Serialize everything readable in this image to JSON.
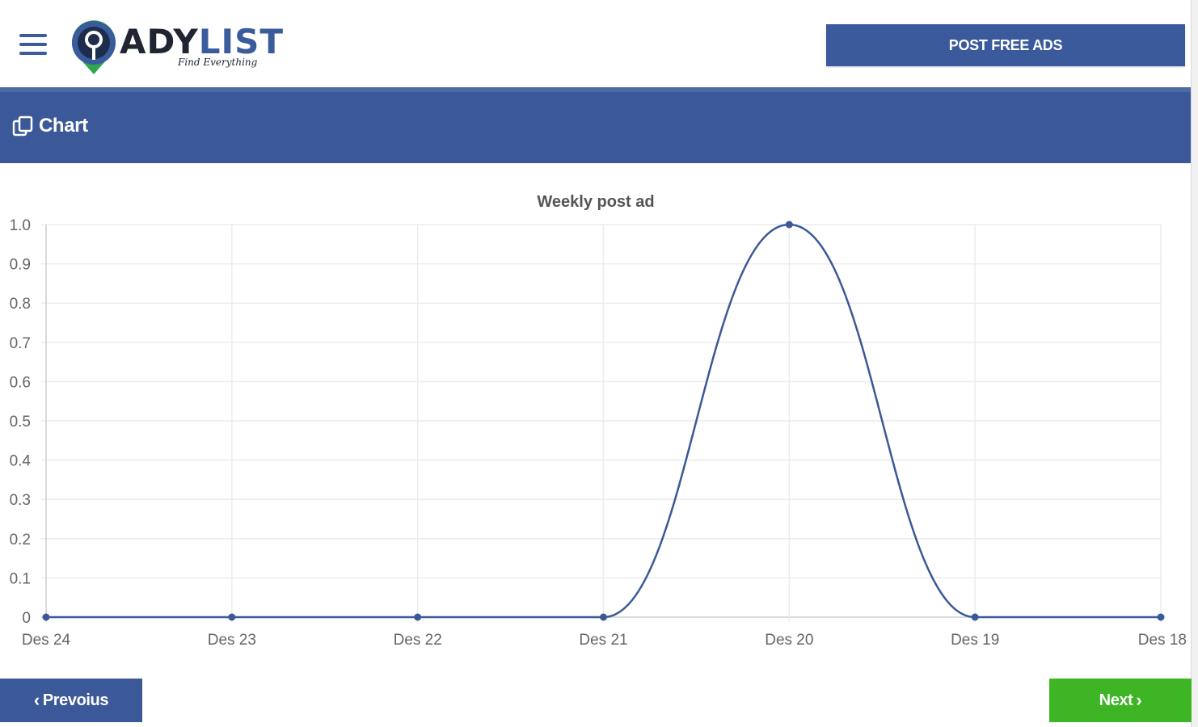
{
  "header": {
    "brand": {
      "name_dark": "ADY",
      "name_blue": "LIST",
      "tagline": "Find Everything"
    },
    "menu_icon": "hamburger-icon",
    "post_button_label": "POST FREE ADS"
  },
  "section": {
    "title": "Chart",
    "icon": "chart-copy-icon"
  },
  "chart_data": {
    "type": "line",
    "title": "Weekly post ad",
    "categories": [
      "Des 24",
      "Des 23",
      "Des 22",
      "Des 21",
      "Des 20",
      "Des 19",
      "Des 18"
    ],
    "series": [
      {
        "values": [
          0,
          0,
          0,
          0,
          1,
          0,
          0
        ]
      }
    ],
    "ylim": [
      0,
      1
    ],
    "yticks": [
      "0",
      "0.1",
      "0.2",
      "0.3",
      "0.4",
      "0.5",
      "0.6",
      "0.7",
      "0.8",
      "0.9",
      "1.0"
    ],
    "grid": true,
    "line_color": "#3b5998"
  },
  "pagination": {
    "prev_label": "Prevoius",
    "next_label": "Next"
  },
  "colors": {
    "brand_blue": "#3b5998",
    "next_green": "#3db525"
  }
}
